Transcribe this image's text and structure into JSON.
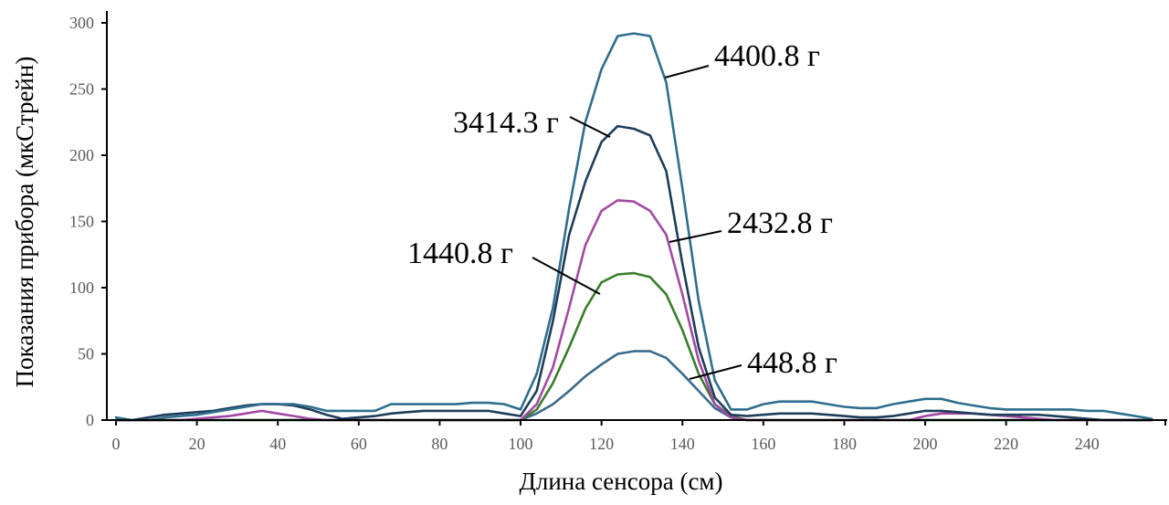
{
  "chart_data": {
    "type": "line",
    "title": "",
    "xlabel": "Длина сенсора (см)",
    "ylabel": "Показания прибора (мкСтрейн)",
    "xlim": [
      0,
      258
    ],
    "ylim": [
      0,
      300
    ],
    "xticks": [
      0,
      20,
      40,
      60,
      80,
      100,
      120,
      140,
      160,
      180,
      200,
      220,
      240
    ],
    "yticks": [
      0,
      50,
      100,
      150,
      200,
      250,
      300
    ],
    "grid": false,
    "legend": "none",
    "x": [
      0,
      4,
      8,
      12,
      16,
      20,
      24,
      28,
      32,
      36,
      40,
      44,
      48,
      52,
      56,
      60,
      64,
      68,
      72,
      76,
      80,
      84,
      88,
      92,
      96,
      100,
      104,
      108,
      112,
      116,
      120,
      124,
      128,
      132,
      136,
      140,
      144,
      148,
      152,
      156,
      160,
      164,
      168,
      172,
      176,
      180,
      184,
      188,
      192,
      196,
      200,
      204,
      208,
      212,
      216,
      220,
      224,
      228,
      232,
      236,
      240,
      244,
      248,
      252,
      256
    ],
    "series": [
      {
        "name": "448.8 г",
        "color": "#3a6b8c",
        "values": [
          0,
          0,
          0,
          0,
          0,
          0,
          0,
          0,
          0,
          0,
          0,
          0,
          0,
          0,
          0,
          0,
          0,
          0,
          0,
          0,
          0,
          0,
          0,
          0,
          0,
          0,
          5,
          12,
          22,
          33,
          42,
          50,
          52,
          52,
          47,
          35,
          22,
          9,
          2,
          0,
          0,
          0,
          0,
          0,
          0,
          0,
          0,
          0,
          0,
          0,
          0,
          0,
          0,
          0,
          0,
          0,
          0,
          0,
          0,
          0,
          0,
          0,
          0,
          0,
          0
        ]
      },
      {
        "name": "1440.8 г",
        "color": "#3a7d2c",
        "values": [
          0,
          0,
          0,
          0,
          0,
          0,
          0,
          0,
          0,
          0,
          0,
          0,
          0,
          0,
          0,
          0,
          0,
          0,
          0,
          0,
          0,
          0,
          0,
          0,
          0,
          0,
          8,
          28,
          55,
          84,
          104,
          110,
          111,
          108,
          95,
          68,
          35,
          12,
          3,
          0,
          0,
          0,
          0,
          0,
          0,
          0,
          0,
          0,
          0,
          0,
          0,
          0,
          0,
          0,
          0,
          0,
          0,
          0,
          0,
          0,
          0,
          0,
          0,
          0,
          0
        ]
      },
      {
        "name": "2432.8 г",
        "color": "#a349a4",
        "values": [
          0,
          0,
          0,
          0,
          0,
          1,
          2,
          3,
          5,
          7,
          5,
          3,
          1,
          0,
          0,
          0,
          0,
          0,
          0,
          0,
          0,
          0,
          0,
          0,
          0,
          0,
          12,
          40,
          85,
          132,
          158,
          166,
          165,
          158,
          140,
          95,
          45,
          12,
          2,
          0,
          0,
          0,
          0,
          0,
          0,
          0,
          0,
          0,
          0,
          0,
          3,
          5,
          5,
          5,
          4,
          3,
          2,
          1,
          0,
          0,
          0,
          0,
          0,
          0,
          0
        ]
      },
      {
        "name": "3414.3 г",
        "color": "#1e3d59",
        "values": [
          0,
          0,
          2,
          4,
          5,
          6,
          7,
          9,
          11,
          12,
          12,
          11,
          8,
          4,
          1,
          2,
          3,
          5,
          6,
          7,
          7,
          7,
          7,
          7,
          5,
          3,
          22,
          75,
          140,
          180,
          210,
          222,
          220,
          215,
          188,
          118,
          55,
          17,
          4,
          3,
          4,
          5,
          5,
          5,
          4,
          3,
          2,
          2,
          3,
          5,
          7,
          7,
          6,
          5,
          4,
          4,
          4,
          4,
          3,
          2,
          1,
          0,
          0,
          0,
          0
        ]
      },
      {
        "name": "4400.8 г",
        "color": "#2e6e8e",
        "values": [
          2,
          0,
          0,
          2,
          3,
          4,
          6,
          8,
          10,
          12,
          12,
          12,
          10,
          7,
          7,
          7,
          7,
          12,
          12,
          12,
          12,
          12,
          13,
          13,
          12,
          8,
          35,
          85,
          160,
          225,
          265,
          290,
          292,
          290,
          255,
          175,
          90,
          30,
          8,
          8,
          12,
          14,
          14,
          14,
          12,
          10,
          9,
          9,
          12,
          14,
          16,
          16,
          13,
          11,
          9,
          8,
          8,
          8,
          8,
          8,
          7,
          7,
          5,
          3,
          1
        ]
      }
    ],
    "annotations": [
      {
        "text": "4400.8 г",
        "series": 4
      },
      {
        "text": "3414.3 г",
        "series": 3
      },
      {
        "text": "2432.8 г",
        "series": 2
      },
      {
        "text": "1440.8 г",
        "series": 1
      },
      {
        "text": "448.8 г",
        "series": 0
      }
    ]
  }
}
